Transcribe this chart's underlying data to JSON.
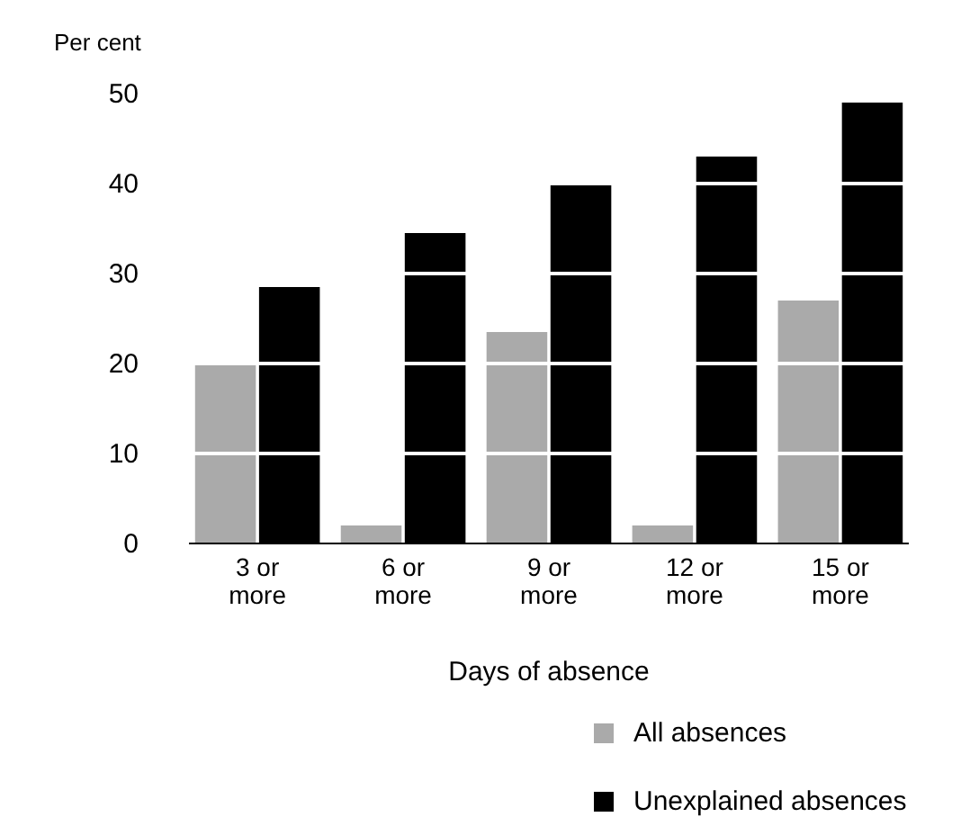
{
  "chart_data": {
    "type": "bar",
    "ylabel": "Per cent",
    "xlabel": "Days of absence",
    "categories": [
      "3 or more",
      "6 or more",
      "9 or more",
      "12 or more",
      "15 or more"
    ],
    "series": [
      {
        "name": "All absences",
        "color": "#aaaaaa",
        "values": [
          20,
          2,
          23.5,
          2,
          27
        ]
      },
      {
        "name": "Unexplained absences",
        "color": "#000000",
        "values": [
          28.5,
          34.5,
          40,
          43,
          49
        ]
      }
    ],
    "ylim": [
      0,
      50
    ],
    "yticks": [
      0,
      10,
      20,
      30,
      40,
      50
    ],
    "grid": "y",
    "legend": "bottom right"
  }
}
